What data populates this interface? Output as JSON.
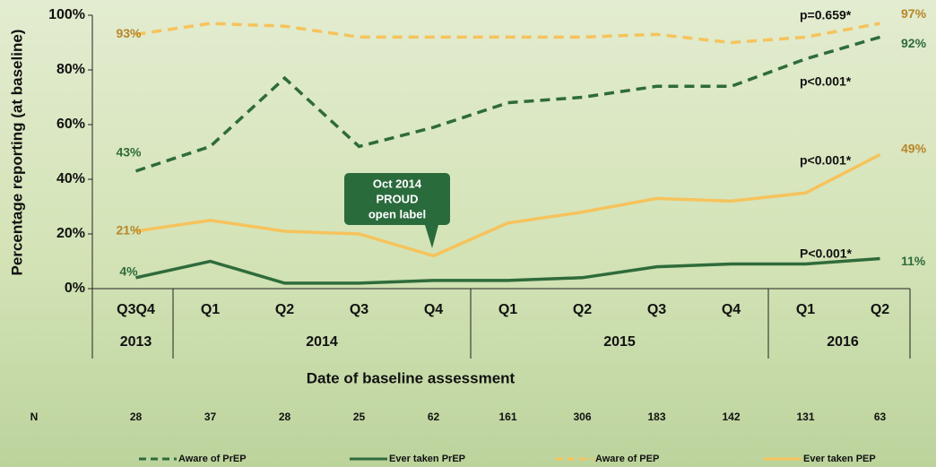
{
  "chart_data": {
    "type": "line",
    "y_axis_label": "Percentage reporting (at baseline)",
    "x_axis_label": "Date of baseline assessment",
    "categories": [
      "Q3Q4",
      "Q1",
      "Q2",
      "Q3",
      "Q4",
      "Q1",
      "Q2",
      "Q3",
      "Q4",
      "Q1",
      "Q2"
    ],
    "year_groups": [
      {
        "label": "2013",
        "span": 1
      },
      {
        "label": "2014",
        "span": 4
      },
      {
        "label": "2015",
        "span": 4
      },
      {
        "label": "2016",
        "span": 2
      }
    ],
    "n_label": "N",
    "n_values": [
      28,
      37,
      28,
      25,
      62,
      161,
      306,
      183,
      142,
      131,
      63
    ],
    "ylim": [
      0,
      100
    ],
    "yticks": [
      {
        "value": 0,
        "label": "0%"
      },
      {
        "value": 20,
        "label": "20%"
      },
      {
        "value": 40,
        "label": "40%"
      },
      {
        "value": 60,
        "label": "60%"
      },
      {
        "value": 80,
        "label": "80%"
      },
      {
        "value": 100,
        "label": "100%"
      }
    ],
    "series": [
      {
        "name": "Aware of PrEP",
        "color": "#2f6b3b",
        "dashed": true,
        "label_color": "#2f6b3b",
        "values": [
          43,
          52,
          77,
          52,
          59,
          68,
          70,
          74,
          74,
          84,
          92
        ],
        "value_labels": [
          "43%",
          null,
          null,
          null,
          null,
          null,
          null,
          null,
          null,
          null,
          "92%"
        ]
      },
      {
        "name": "Ever taken PrEP",
        "color": "#2f6b3b",
        "dashed": false,
        "label_color": "#2f6b3b",
        "values": [
          4,
          10,
          2,
          2,
          3,
          3,
          4,
          8,
          9,
          9,
          11
        ],
        "value_labels": [
          "4%",
          null,
          null,
          null,
          null,
          null,
          null,
          null,
          null,
          null,
          "11%"
        ]
      },
      {
        "name": "Aware of PEP",
        "color": "#f6c35c",
        "dashed": true,
        "label_color": "#b8862a",
        "values": [
          93,
          97,
          96,
          92,
          92,
          92,
          92,
          93,
          90,
          92,
          97
        ],
        "value_labels": [
          "93%",
          null,
          null,
          null,
          null,
          null,
          null,
          null,
          null,
          null,
          "97%"
        ]
      },
      {
        "name": "Ever taken PEP",
        "color": "#f6c35c",
        "dashed": false,
        "label_color": "#b8862a",
        "values": [
          21,
          25,
          21,
          20,
          12,
          24,
          28,
          33,
          32,
          35,
          49
        ],
        "value_labels": [
          "21%",
          null,
          null,
          null,
          null,
          null,
          null,
          null,
          null,
          null,
          "49%"
        ]
      }
    ],
    "annotations": [
      "p=0.659*",
      "p<0.001*",
      "p<0.001*",
      "P<0.001*"
    ],
    "callout": [
      "Oct 2014",
      "PROUD",
      "open label"
    ]
  }
}
